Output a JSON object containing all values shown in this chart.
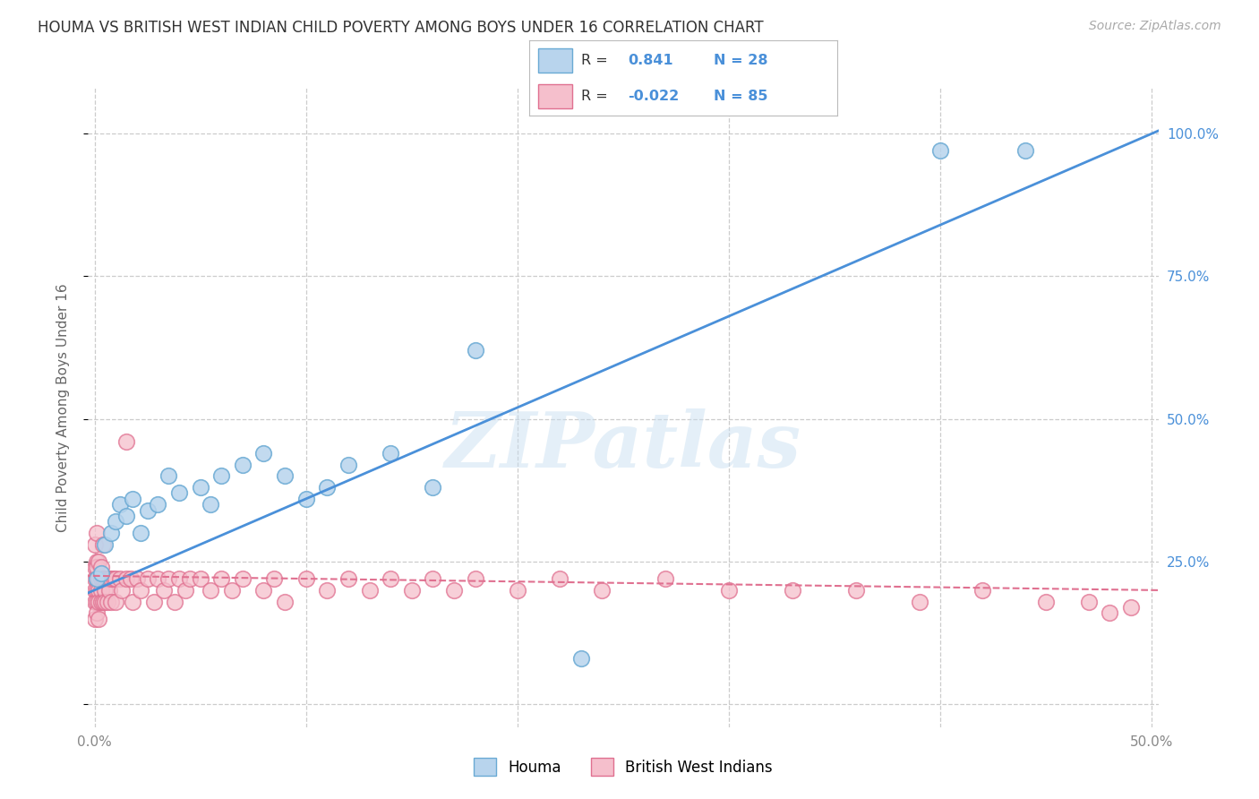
{
  "title": "HOUMA VS BRITISH WEST INDIAN CHILD POVERTY AMONG BOYS UNDER 16 CORRELATION CHART",
  "source": "Source: ZipAtlas.com",
  "ylabel": "Child Poverty Among Boys Under 16",
  "xlim": [
    -0.003,
    0.503
  ],
  "ylim": [
    -0.04,
    1.08
  ],
  "xticks": [
    0.0,
    0.1,
    0.2,
    0.3,
    0.4,
    0.5
  ],
  "xticklabels": [
    "0.0%",
    "",
    "",
    "",
    "",
    "50.0%"
  ],
  "yticks": [
    0.0,
    0.25,
    0.5,
    0.75,
    1.0
  ],
  "yticklabels_right": [
    "",
    "25.0%",
    "50.0%",
    "75.0%",
    "100.0%"
  ],
  "watermark": "ZIPatlas",
  "color_houma_fill": "#b8d4ed",
  "color_houma_edge": "#6aaad4",
  "color_bwi_fill": "#f5bfcc",
  "color_bwi_edge": "#e07090",
  "color_houma_line": "#4a90d9",
  "color_bwi_line": "#e07090",
  "color_ytick": "#4a90d9",
  "grid_color": "#cccccc",
  "R_houma": 0.841,
  "N_houma": 28,
  "R_bwi": -0.022,
  "N_bwi": 85,
  "houma_intercept": 0.2,
  "houma_slope": 1.6,
  "bwi_intercept": 0.225,
  "bwi_slope": -0.05,
  "houma_x": [
    0.001,
    0.003,
    0.005,
    0.008,
    0.01,
    0.012,
    0.015,
    0.018,
    0.022,
    0.025,
    0.03,
    0.035,
    0.04,
    0.05,
    0.055,
    0.06,
    0.07,
    0.08,
    0.09,
    0.1,
    0.11,
    0.12,
    0.14,
    0.16,
    0.18,
    0.23,
    0.4,
    0.44
  ],
  "houma_y": [
    0.22,
    0.23,
    0.28,
    0.3,
    0.32,
    0.35,
    0.33,
    0.36,
    0.3,
    0.34,
    0.35,
    0.4,
    0.37,
    0.38,
    0.35,
    0.4,
    0.42,
    0.44,
    0.4,
    0.36,
    0.38,
    0.42,
    0.44,
    0.38,
    0.62,
    0.08,
    0.97,
    0.97
  ],
  "bwi_x": [
    0.0,
    0.0,
    0.0,
    0.0,
    0.0,
    0.0,
    0.001,
    0.001,
    0.001,
    0.001,
    0.001,
    0.001,
    0.001,
    0.002,
    0.002,
    0.002,
    0.002,
    0.002,
    0.002,
    0.003,
    0.003,
    0.003,
    0.003,
    0.004,
    0.004,
    0.004,
    0.005,
    0.005,
    0.005,
    0.006,
    0.006,
    0.007,
    0.007,
    0.008,
    0.008,
    0.009,
    0.01,
    0.01,
    0.012,
    0.013,
    0.015,
    0.015,
    0.017,
    0.018,
    0.02,
    0.022,
    0.025,
    0.028,
    0.03,
    0.033,
    0.035,
    0.038,
    0.04,
    0.043,
    0.045,
    0.05,
    0.055,
    0.06,
    0.065,
    0.07,
    0.08,
    0.085,
    0.09,
    0.1,
    0.11,
    0.12,
    0.13,
    0.14,
    0.15,
    0.16,
    0.17,
    0.18,
    0.2,
    0.22,
    0.24,
    0.27,
    0.3,
    0.33,
    0.36,
    0.39,
    0.42,
    0.45,
    0.47,
    0.48,
    0.49
  ],
  "bwi_y": [
    0.22,
    0.24,
    0.2,
    0.18,
    0.28,
    0.15,
    0.22,
    0.25,
    0.2,
    0.18,
    0.24,
    0.16,
    0.3,
    0.22,
    0.2,
    0.25,
    0.18,
    0.22,
    0.15,
    0.22,
    0.2,
    0.18,
    0.24,
    0.22,
    0.18,
    0.28,
    0.22,
    0.2,
    0.18,
    0.22,
    0.18,
    0.22,
    0.2,
    0.22,
    0.18,
    0.22,
    0.22,
    0.18,
    0.22,
    0.2,
    0.22,
    0.46,
    0.22,
    0.18,
    0.22,
    0.2,
    0.22,
    0.18,
    0.22,
    0.2,
    0.22,
    0.18,
    0.22,
    0.2,
    0.22,
    0.22,
    0.2,
    0.22,
    0.2,
    0.22,
    0.2,
    0.22,
    0.18,
    0.22,
    0.2,
    0.22,
    0.2,
    0.22,
    0.2,
    0.22,
    0.2,
    0.22,
    0.2,
    0.22,
    0.2,
    0.22,
    0.2,
    0.2,
    0.2,
    0.18,
    0.2,
    0.18,
    0.18,
    0.16,
    0.17
  ]
}
